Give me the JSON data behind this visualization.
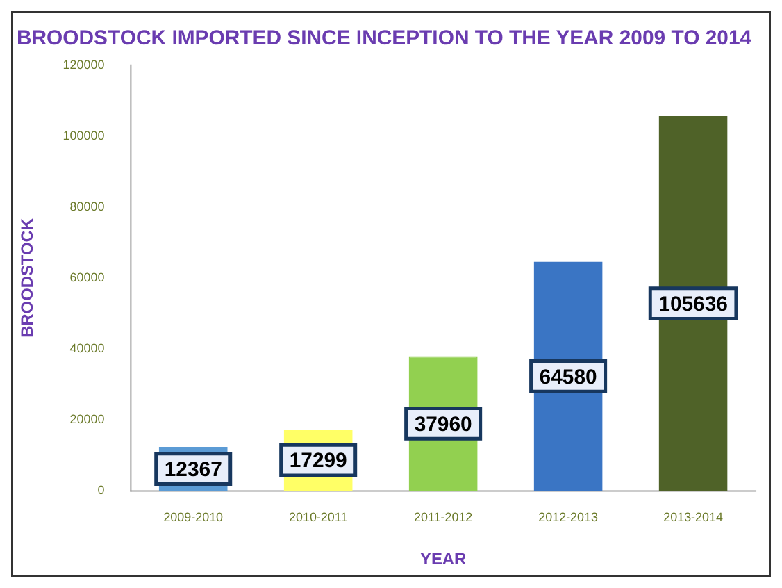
{
  "chart_data": {
    "type": "bar",
    "title": "BROODSTOCK IMPORTED SINCE INCEPTION TO THE YEAR 2009 TO 2014",
    "xlabel": "YEAR",
    "ylabel": "BROODSTOCK",
    "categories": [
      "2009-2010",
      "2010-2011",
      "2011-2012",
      "2012-2013",
      "2013-2014"
    ],
    "values": [
      12367,
      17299,
      37960,
      64580,
      105636
    ],
    "colors": [
      "#5b9bd5",
      "#ffff66",
      "#92d050",
      "#3a75c4",
      "#4f6228"
    ],
    "ylim": [
      0,
      120000
    ],
    "yticks": [
      0,
      20000,
      40000,
      60000,
      80000,
      100000,
      120000
    ],
    "grid": false,
    "legend": false,
    "data_labels": true
  }
}
